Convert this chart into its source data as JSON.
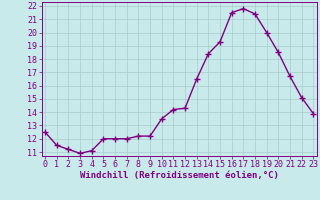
{
  "x": [
    0,
    1,
    2,
    3,
    4,
    5,
    6,
    7,
    8,
    9,
    10,
    11,
    12,
    13,
    14,
    15,
    16,
    17,
    18,
    19,
    20,
    21,
    22,
    23
  ],
  "y": [
    12.5,
    11.5,
    11.2,
    10.9,
    11.1,
    12.0,
    12.0,
    12.0,
    12.2,
    12.2,
    13.5,
    14.2,
    14.3,
    16.5,
    18.4,
    19.3,
    21.5,
    21.8,
    21.4,
    20.0,
    18.5,
    16.7,
    15.1,
    13.9
  ],
  "line_color": "#800080",
  "marker": "+",
  "marker_size": 4,
  "marker_edge_width": 1.0,
  "background_color": "#c8eaea",
  "grid_color": "#a8cccc",
  "xlabel": "Windchill (Refroidissement éolien,°C)",
  "ylabel": "",
  "ylim_min": 11,
  "ylim_max": 22,
  "xlim_min": 0,
  "xlim_max": 23,
  "yticks": [
    11,
    12,
    13,
    14,
    15,
    16,
    17,
    18,
    19,
    20,
    21,
    22
  ],
  "xticks": [
    0,
    1,
    2,
    3,
    4,
    5,
    6,
    7,
    8,
    9,
    10,
    11,
    12,
    13,
    14,
    15,
    16,
    17,
    18,
    19,
    20,
    21,
    22,
    23
  ],
  "line_width": 1.0,
  "axis_color": "#800080",
  "font_color": "#800080",
  "tick_font_size": 6.0,
  "xlabel_font_size": 6.5
}
